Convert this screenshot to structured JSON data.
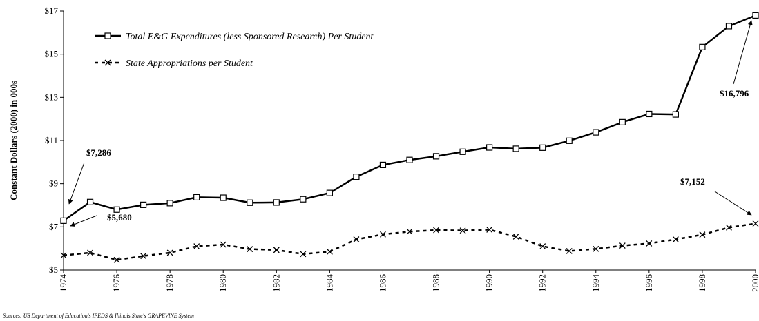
{
  "chart_data": {
    "type": "line",
    "y_label": "Constant Dollars (2000) in 000s",
    "source": "Sources:  US Department of Education's IPEDS & Illinois State's GRAPEVINE System",
    "x": [
      1974,
      1975,
      1976,
      1977,
      1978,
      1979,
      1980,
      1981,
      1982,
      1983,
      1984,
      1985,
      1986,
      1987,
      1988,
      1989,
      1990,
      1991,
      1992,
      1993,
      1994,
      1995,
      1996,
      1997,
      1998,
      1999,
      2000
    ],
    "series": [
      {
        "name": "Total E&G Expenditures (less Sponsored Research) Per Student",
        "color": "#000000",
        "marker": "square",
        "dash": false,
        "values": [
          7.286,
          8.15,
          7.8,
          8.02,
          8.1,
          8.37,
          8.35,
          8.12,
          8.13,
          8.28,
          8.57,
          9.32,
          9.87,
          10.1,
          10.27,
          10.48,
          10.68,
          10.62,
          10.67,
          10.99,
          11.38,
          11.85,
          12.23,
          12.21,
          15.33,
          16.3,
          16.796
        ]
      },
      {
        "name": "State Appropriations per Student",
        "color": "#000000",
        "marker": "x",
        "dash": true,
        "values": [
          5.68,
          5.8,
          5.47,
          5.65,
          5.8,
          6.1,
          6.18,
          5.97,
          5.93,
          5.74,
          5.85,
          6.42,
          6.65,
          6.78,
          6.85,
          6.83,
          6.87,
          6.55,
          6.1,
          5.88,
          5.98,
          6.13,
          6.23,
          6.42,
          6.64,
          6.97,
          7.152
        ]
      }
    ],
    "annotations": [
      "$7,286",
      "$5,680",
      "$16,796",
      "$7,152"
    ],
    "xlim": [
      1974,
      2000
    ],
    "xticks": [
      1974,
      1976,
      1978,
      1980,
      1982,
      1984,
      1986,
      1988,
      1990,
      1992,
      1994,
      1996,
      1998,
      2000
    ],
    "ylim": [
      5,
      17
    ],
    "yticks": [
      {
        "value": 5,
        "label": "$5"
      },
      {
        "value": 7,
        "label": "$7"
      },
      {
        "value": 9,
        "label": "$9"
      },
      {
        "value": 11,
        "label": "$11"
      },
      {
        "value": 13,
        "label": "$13"
      },
      {
        "value": 15,
        "label": "$15"
      },
      {
        "value": 17,
        "label": "$17"
      }
    ],
    "legend": "upper left",
    "grid": false
  }
}
